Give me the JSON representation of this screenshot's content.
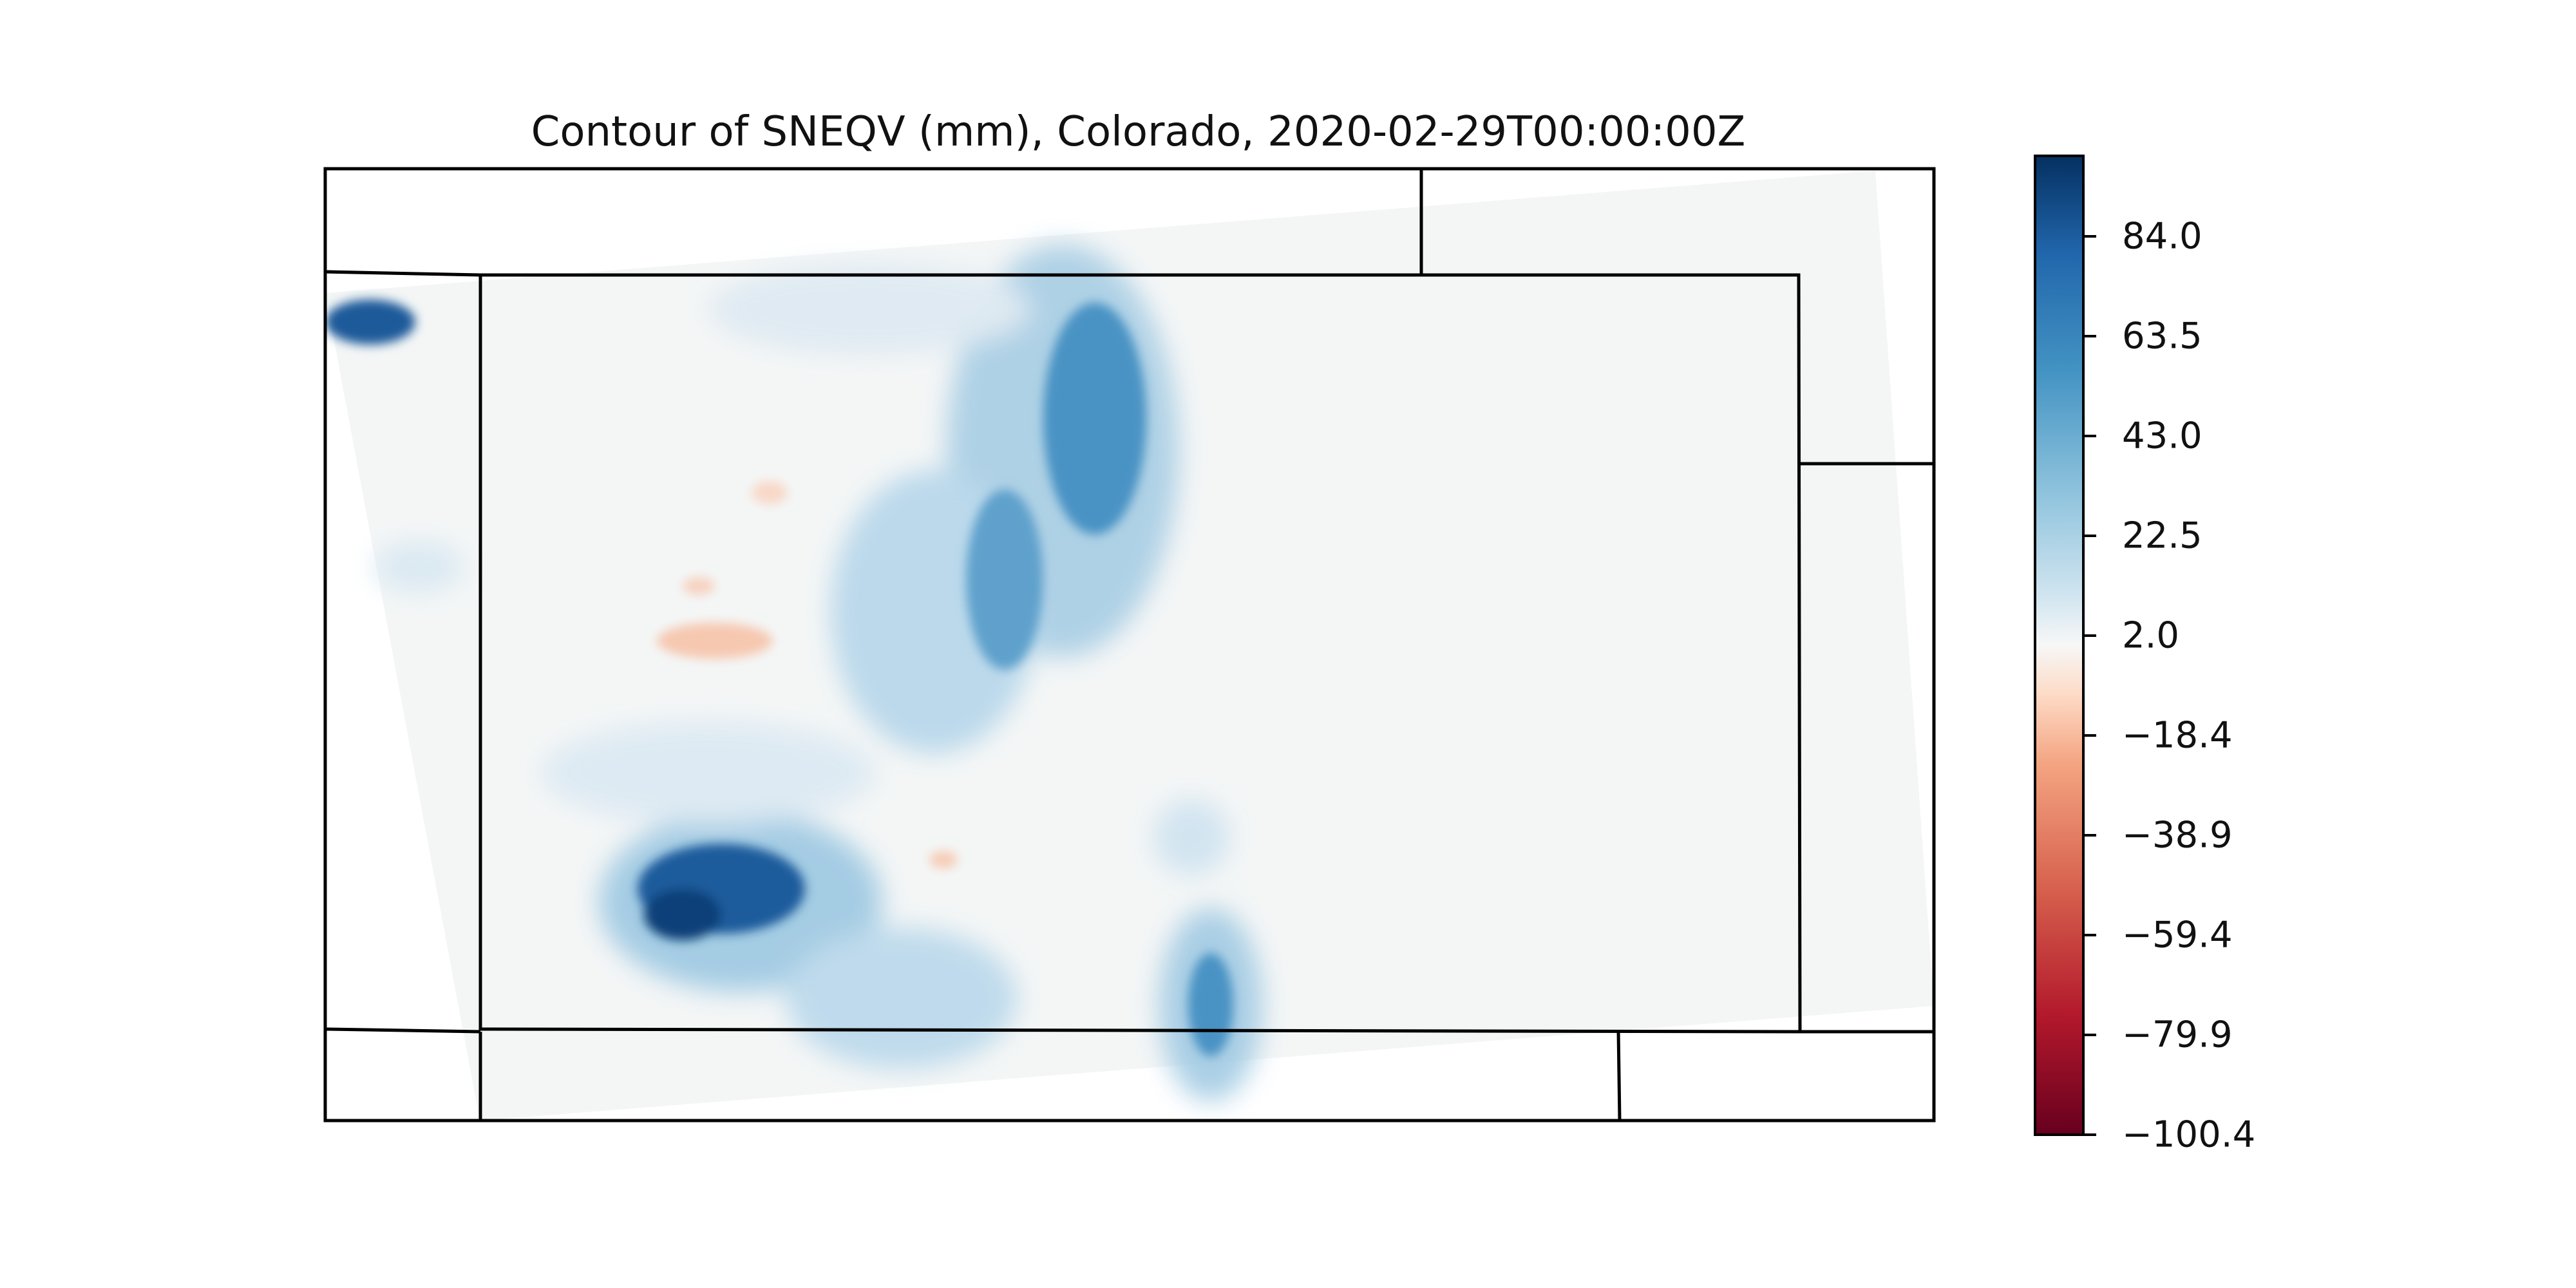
{
  "title": "Contour of SNEQV (mm), Colorado, 2020-02-29T00:00:00Z",
  "colormap": {
    "name": "RdBu",
    "low_color": "#67001f",
    "mid_color": "#f7f7f7",
    "high_color": "#053061",
    "ticks": [
      "84.0",
      "63.5",
      "43.0",
      "22.5",
      "2.0",
      "−18.4",
      "−38.9",
      "−59.4",
      "−79.9",
      "−100.4"
    ],
    "min": -100.4,
    "max": 104.5
  },
  "map": {
    "region": "Colorado",
    "variable": "SNEQV",
    "units": "mm"
  }
}
